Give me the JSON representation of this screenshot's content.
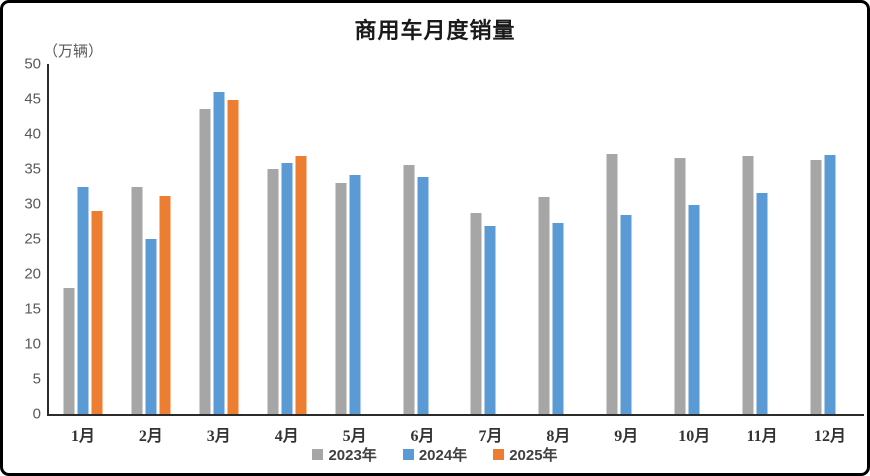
{
  "title": "商用车月度销量",
  "unit_label": "（万辆）",
  "chart_data": {
    "type": "bar",
    "title": "商用车月度销量",
    "ylabel": "（万辆）",
    "xlabel": "",
    "ylim": [
      0,
      50
    ],
    "ytick_step": 5,
    "grid": false,
    "legend_position": "bottom",
    "categories": [
      "1月",
      "2月",
      "3月",
      "4月",
      "5月",
      "6月",
      "7月",
      "8月",
      "9月",
      "10月",
      "11月",
      "12月"
    ],
    "series": [
      {
        "name": "2023年",
        "color": "#A6A6A6",
        "values": [
          18.0,
          32.5,
          43.6,
          35.0,
          33.0,
          35.6,
          28.7,
          31.0,
          37.2,
          36.6,
          36.8,
          36.3
        ]
      },
      {
        "name": "2024年",
        "color": "#5B9BD5",
        "values": [
          32.5,
          25.0,
          46.0,
          35.8,
          34.2,
          33.8,
          26.8,
          27.3,
          28.5,
          29.9,
          31.6,
          37.0
        ]
      },
      {
        "name": "2025年",
        "color": "#ED7D31",
        "values": [
          29.0,
          31.2,
          44.8,
          36.9,
          null,
          null,
          null,
          null,
          null,
          null,
          null,
          null
        ]
      }
    ]
  }
}
